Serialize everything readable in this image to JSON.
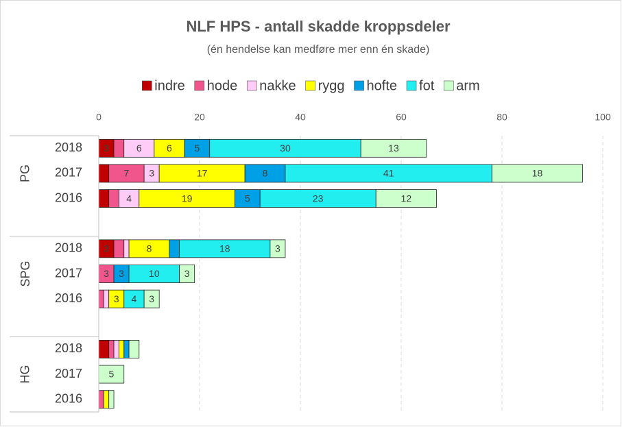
{
  "chart_data": {
    "type": "stacked-bar-horizontal",
    "title": "NLF HPS - antall skadde kroppsdeler",
    "subtitle": "(én hendelse kan medføre mer enn én skade)",
    "group_labels": [
      "PG",
      "SPG",
      "HG"
    ],
    "categories": [
      "2018",
      "2017",
      "2016",
      "2018",
      "2017",
      "2016",
      "2018",
      "2017",
      "2016"
    ],
    "series": [
      {
        "name": "indre",
        "color": "#c00000",
        "values": [
          3,
          2,
          2,
          3,
          0,
          0,
          2,
          0,
          0
        ]
      },
      {
        "name": "hode",
        "color": "#f0558c",
        "values": [
          2,
          7,
          2,
          2,
          3,
          1,
          1,
          0,
          1
        ]
      },
      {
        "name": "nakke",
        "color": "#ffccf7",
        "values": [
          6,
          3,
          4,
          1,
          0,
          1,
          1,
          0,
          0
        ]
      },
      {
        "name": "rygg",
        "color": "#ffff00",
        "values": [
          6,
          17,
          19,
          8,
          0,
          3,
          1,
          0,
          1
        ]
      },
      {
        "name": "hofte",
        "color": "#00a0e6",
        "values": [
          5,
          8,
          5,
          2,
          3,
          0,
          1,
          0,
          0
        ]
      },
      {
        "name": "fot",
        "color": "#22eef0",
        "values": [
          30,
          41,
          23,
          18,
          10,
          4,
          0,
          0,
          0
        ]
      },
      {
        "name": "arm",
        "color": "#ccffcc",
        "values": [
          13,
          18,
          12,
          3,
          3,
          3,
          2,
          5,
          1
        ]
      }
    ],
    "xlim": [
      0,
      100
    ],
    "xticks": [
      0,
      20,
      40,
      60,
      80,
      100
    ],
    "grid": true,
    "legend": "top"
  }
}
